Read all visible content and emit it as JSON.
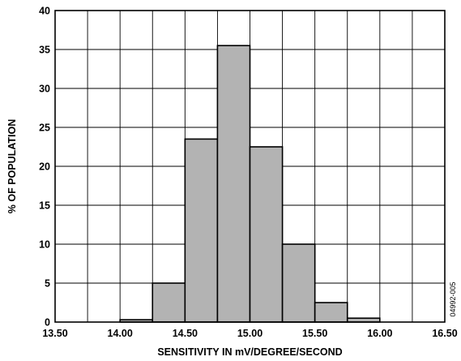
{
  "chart_data": {
    "type": "bar",
    "xlabel": "SENSITIVITY IN mV/DEGREE/SECOND",
    "ylabel": "% OF POPULATION",
    "xlim": [
      13.5,
      16.5
    ],
    "ylim": [
      0,
      40
    ],
    "xticks": [
      13.5,
      14.0,
      14.5,
      15.0,
      15.5,
      16.0,
      16.5
    ],
    "xtick_labels": [
      "13.50",
      "14.00",
      "14.50",
      "15.00",
      "15.50",
      "16.00",
      "16.50"
    ],
    "yticks": [
      0,
      5,
      10,
      15,
      20,
      25,
      30,
      35,
      40
    ],
    "ytick_labels": [
      "0",
      "5",
      "10",
      "15",
      "20",
      "25",
      "30",
      "35",
      "40"
    ],
    "x_grid_step": 0.25,
    "grid": true,
    "bin_width": 0.25,
    "bins": [
      {
        "x0": 14.0,
        "x1": 14.25,
        "value": 0.3
      },
      {
        "x0": 14.25,
        "x1": 14.5,
        "value": 5.0
      },
      {
        "x0": 14.5,
        "x1": 14.75,
        "value": 23.5
      },
      {
        "x0": 14.75,
        "x1": 15.0,
        "value": 35.5
      },
      {
        "x0": 15.0,
        "x1": 15.25,
        "value": 22.5
      },
      {
        "x0": 15.25,
        "x1": 15.5,
        "value": 10.0
      },
      {
        "x0": 15.5,
        "x1": 15.75,
        "value": 2.5
      },
      {
        "x0": 15.75,
        "x1": 16.0,
        "value": 0.5
      }
    ],
    "bar_color": "#b3b3b3",
    "side_code": "04992-005"
  }
}
